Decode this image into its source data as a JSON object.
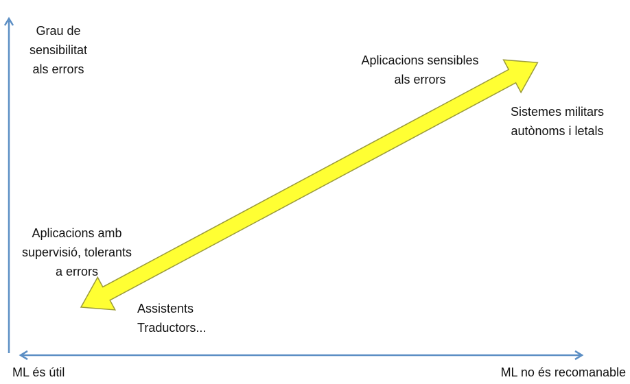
{
  "y_axis_label": [
    "Grau de",
    "sensibilitat",
    "als errors"
  ],
  "x_axis": {
    "left_label": "ML és útil",
    "right_label": "ML no és recomanable"
  },
  "top_end": {
    "title": [
      "Aplicacions sensibles",
      "als errors"
    ],
    "example": [
      "Sistemes militars",
      "autònoms i letals"
    ]
  },
  "bottom_end": {
    "title": [
      "Aplicacions amb",
      "supervisió, tolerants",
      "a errors"
    ],
    "example": [
      "Assistents",
      "Traductors..."
    ]
  },
  "colors": {
    "axis": "#5b8ec4",
    "arrow_fill": "#ffff33",
    "arrow_stroke": "#9a9a3a"
  }
}
